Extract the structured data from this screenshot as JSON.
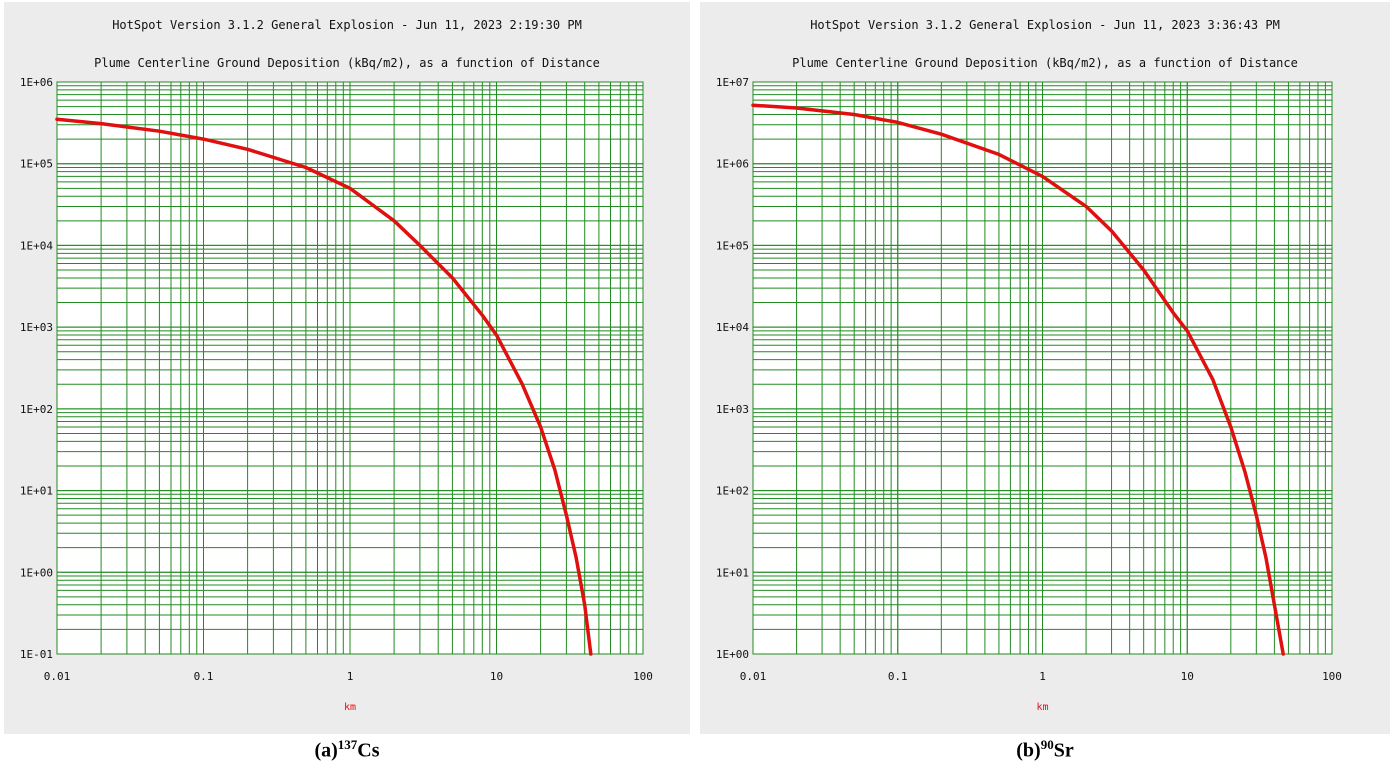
{
  "captions": {
    "a": {
      "prefix": "(a)",
      "sup": "137",
      "element": "Cs"
    },
    "b": {
      "prefix": "(b)",
      "sup": "90",
      "element": "Sr"
    }
  },
  "colors": {
    "panel_background": "#ececec",
    "grid": "#228b22",
    "curve": "#e01010",
    "xlabel": "#e01010"
  },
  "chart_data": [
    {
      "type": "line",
      "title": "HotSpot Version 3.1.2 General Explosion - Jun 11, 2023 2:19:30 PM",
      "subtitle": "Plume Centerline Ground Deposition (kBq/m2), as a function of Distance",
      "xlabel": "km",
      "ylabel": "",
      "x_scale": "log",
      "y_scale": "log",
      "xlim": [
        0.01,
        100
      ],
      "ylim": [
        0.1,
        1000000
      ],
      "x_ticks": [
        "0.01",
        "0.1",
        "1",
        "10",
        "100"
      ],
      "y_ticks": [
        "1E-01",
        "1E+00",
        "1E+01",
        "1E+02",
        "1E+03",
        "1E+04",
        "1E+05",
        "1E+06"
      ],
      "grid": true,
      "series": [
        {
          "x": [
            0.01,
            0.02,
            0.05,
            0.1,
            0.2,
            0.5,
            1,
            2,
            3,
            5,
            8,
            10,
            15,
            20,
            25,
            30,
            35,
            40,
            44
          ],
          "y": [
            350000,
            310000,
            250000,
            200000,
            150000,
            90000,
            50000,
            20000,
            10000,
            4000,
            1400,
            800,
            200,
            60,
            18,
            5,
            1.5,
            0.4,
            0.1
          ]
        }
      ]
    },
    {
      "type": "line",
      "title": "HotSpot Version 3.1.2 General Explosion - Jun 11, 2023 3:36:43 PM",
      "subtitle": "Plume Centerline Ground Deposition (kBq/m2), as a function of Distance",
      "xlabel": "km",
      "ylabel": "",
      "x_scale": "log",
      "y_scale": "log",
      "xlim": [
        0.01,
        100
      ],
      "ylim": [
        1,
        10000000
      ],
      "x_ticks": [
        "0.01",
        "0.1",
        "1",
        "10",
        "100"
      ],
      "y_ticks": [
        "1E+00",
        "1E+01",
        "1E+02",
        "1E+03",
        "1E+04",
        "1E+05",
        "1E+06",
        "1E+07"
      ],
      "grid": true,
      "series": [
        {
          "x": [
            0.01,
            0.02,
            0.05,
            0.1,
            0.2,
            0.5,
            1,
            2,
            3,
            5,
            8,
            10,
            15,
            20,
            25,
            30,
            35,
            40,
            46
          ],
          "y": [
            5200000,
            4800000,
            4000000,
            3200000,
            2300000,
            1300000,
            700000,
            300000,
            150000,
            50000,
            15000,
            9000,
            2300,
            600,
            170,
            50,
            15,
            4,
            1
          ]
        }
      ]
    }
  ]
}
